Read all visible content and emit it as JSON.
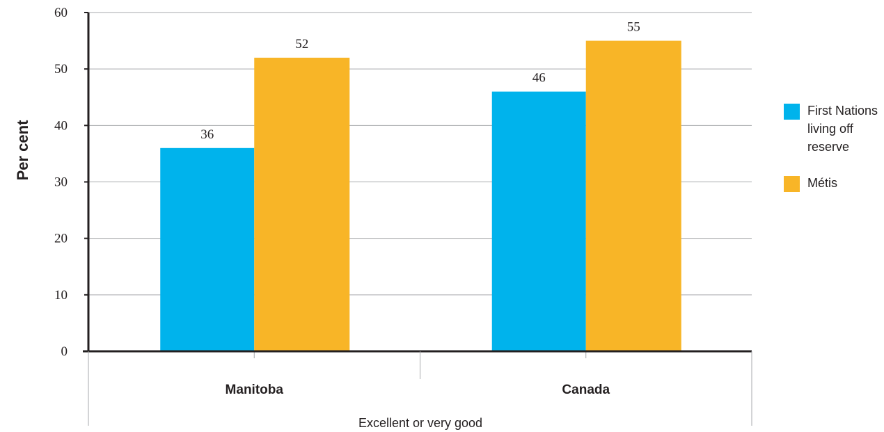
{
  "chart_data": {
    "type": "bar",
    "title": "",
    "ylabel": "Per cent",
    "xlabel": "Excellent or very good",
    "categories": [
      "Manitoba",
      "Canada"
    ],
    "series": [
      {
        "name": "First Nations living off reserve",
        "values": [
          36,
          46
        ],
        "color": "#00b3ec"
      },
      {
        "name": "Métis",
        "values": [
          52,
          55
        ],
        "color": "#f8b527"
      }
    ],
    "data_labels": [
      [
        "36",
        "46"
      ],
      [
        "52",
        "55"
      ]
    ],
    "ylim": [
      0,
      60
    ],
    "yticks": [
      0,
      10,
      20,
      30,
      40,
      50,
      60
    ],
    "grid": true,
    "legend_position": "right"
  }
}
